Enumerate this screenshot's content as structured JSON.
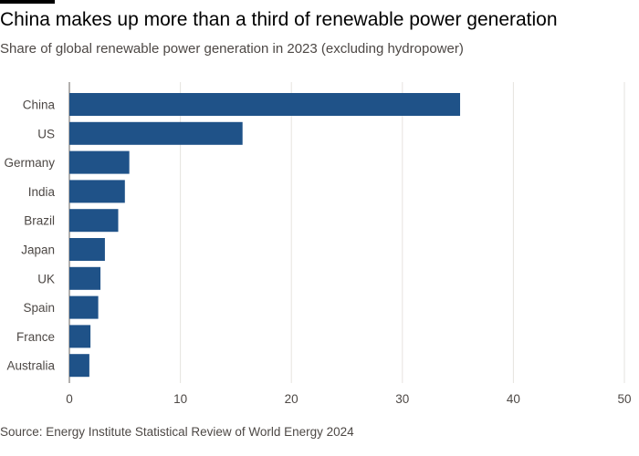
{
  "header": {
    "title": "China makes up more than a third of renewable power generation",
    "subtitle": "Share of global renewable power generation in 2023 (excluding hydropower)"
  },
  "footer": {
    "source": "Source: Energy Institute Statistical Review of World Energy 2024"
  },
  "colors": {
    "bar": "#1f5288",
    "grid": "#e6e3df",
    "text": "#4d4845"
  },
  "chart_data": {
    "type": "bar",
    "orientation": "horizontal",
    "title": "China makes up more than a third of renewable power generation",
    "subtitle": "Share of global renewable power generation in 2023 (excluding hydropower)",
    "xlabel": "",
    "ylabel": "",
    "categories": [
      "China",
      "US",
      "Germany",
      "India",
      "Brazil",
      "Japan",
      "UK",
      "Spain",
      "France",
      "Australia"
    ],
    "values": [
      35.2,
      15.6,
      5.4,
      5.0,
      4.4,
      3.2,
      2.8,
      2.6,
      1.9,
      1.8
    ],
    "xlim": [
      0,
      50
    ],
    "xticks": [
      0,
      10,
      20,
      30,
      40,
      50
    ],
    "grid": true,
    "legend": "none"
  }
}
